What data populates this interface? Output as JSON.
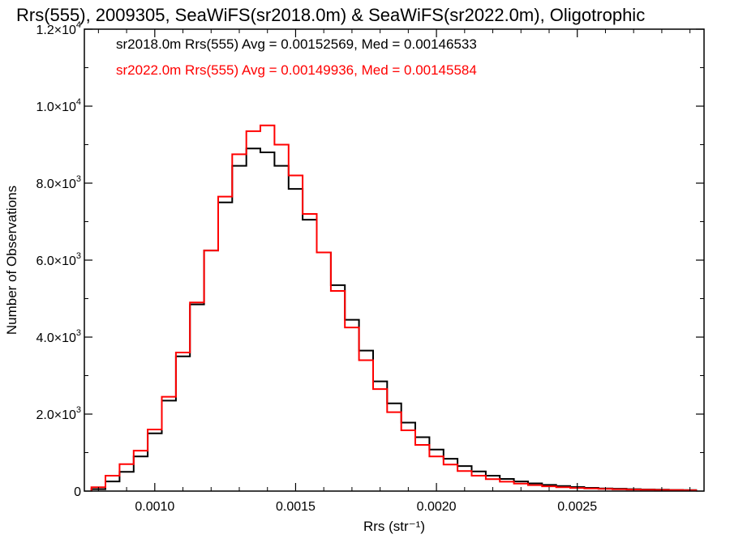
{
  "chart_data": {
    "type": "line",
    "title": "Rrs(555), 2009305, SeaWiFS(sr2018.0m) & SeaWiFS(sr2022.0m), Oligotrophic",
    "xlabel": "Rrs (str⁻¹)",
    "ylabel": "Number of Observations",
    "xlim": [
      0.00075,
      0.00295
    ],
    "ylim": [
      0,
      12000
    ],
    "x_ticks": [
      0.001,
      0.0015,
      0.002,
      0.0025
    ],
    "x_tick_labels": [
      "0.0010",
      "0.0015",
      "0.0020",
      "0.0025"
    ],
    "y_ticks": [
      0,
      2000,
      4000,
      6000,
      8000,
      10000,
      12000
    ],
    "y_tick_labels": [
      {
        "base": "0",
        "exp": ""
      },
      {
        "base": "2.0×10",
        "exp": "3"
      },
      {
        "base": "4.0×10",
        "exp": "3"
      },
      {
        "base": "6.0×10",
        "exp": "3"
      },
      {
        "base": "8.0×10",
        "exp": "3"
      },
      {
        "base": "1.0×10",
        "exp": "4"
      },
      {
        "base": "1.2×10",
        "exp": "4"
      }
    ],
    "legend_position": "top-left",
    "grid": false,
    "series": [
      {
        "name": "sr2018.0m",
        "color": "#000000",
        "annotation": "sr2018.0m Rrs(555) Avg = 0.00152569, Med = 0.00146533",
        "x": [
          0.0008,
          0.00085,
          0.0009,
          0.00095,
          0.001,
          0.00105,
          0.0011,
          0.00115,
          0.0012,
          0.00125,
          0.0013,
          0.00135,
          0.0014,
          0.00145,
          0.0015,
          0.00155,
          0.0016,
          0.00165,
          0.0017,
          0.00175,
          0.0018,
          0.00185,
          0.0019,
          0.00195,
          0.002,
          0.00205,
          0.0021,
          0.00215,
          0.0022,
          0.00225,
          0.0023,
          0.00235,
          0.0024,
          0.00245,
          0.0025,
          0.00255,
          0.0026,
          0.00265,
          0.0027,
          0.00275,
          0.0028,
          0.00285,
          0.0029
        ],
        "y": [
          50,
          250,
          500,
          900,
          1500,
          2350,
          3500,
          4850,
          6250,
          7500,
          8450,
          8900,
          8800,
          8450,
          7850,
          7050,
          6200,
          5350,
          4450,
          3650,
          2850,
          2280,
          1780,
          1400,
          1080,
          840,
          650,
          510,
          400,
          315,
          250,
          200,
          160,
          130,
          105,
          85,
          70,
          60,
          50,
          42,
          35,
          30,
          25
        ]
      },
      {
        "name": "sr2022.0m",
        "color": "#ff0000",
        "annotation": "sr2022.0m Rrs(555) Avg = 0.00149936, Med = 0.00145584",
        "x": [
          0.0008,
          0.00085,
          0.0009,
          0.00095,
          0.001,
          0.00105,
          0.0011,
          0.00115,
          0.0012,
          0.00125,
          0.0013,
          0.00135,
          0.0014,
          0.00145,
          0.0015,
          0.00155,
          0.0016,
          0.00165,
          0.0017,
          0.00175,
          0.0018,
          0.00185,
          0.0019,
          0.00195,
          0.002,
          0.00205,
          0.0021,
          0.00215,
          0.0022,
          0.00225,
          0.0023,
          0.00235,
          0.0024,
          0.00245,
          0.0025,
          0.00255,
          0.0026,
          0.00265,
          0.0027,
          0.00275,
          0.0028,
          0.00285,
          0.0029
        ],
        "y": [
          100,
          400,
          700,
          1050,
          1600,
          2450,
          3600,
          4900,
          6250,
          7650,
          8750,
          9350,
          9500,
          9000,
          8200,
          7200,
          6200,
          5200,
          4250,
          3400,
          2650,
          2050,
          1580,
          1200,
          900,
          690,
          520,
          400,
          310,
          245,
          195,
          155,
          125,
          100,
          82,
          68,
          56,
          47,
          40,
          34,
          29,
          25,
          21
        ]
      }
    ]
  }
}
